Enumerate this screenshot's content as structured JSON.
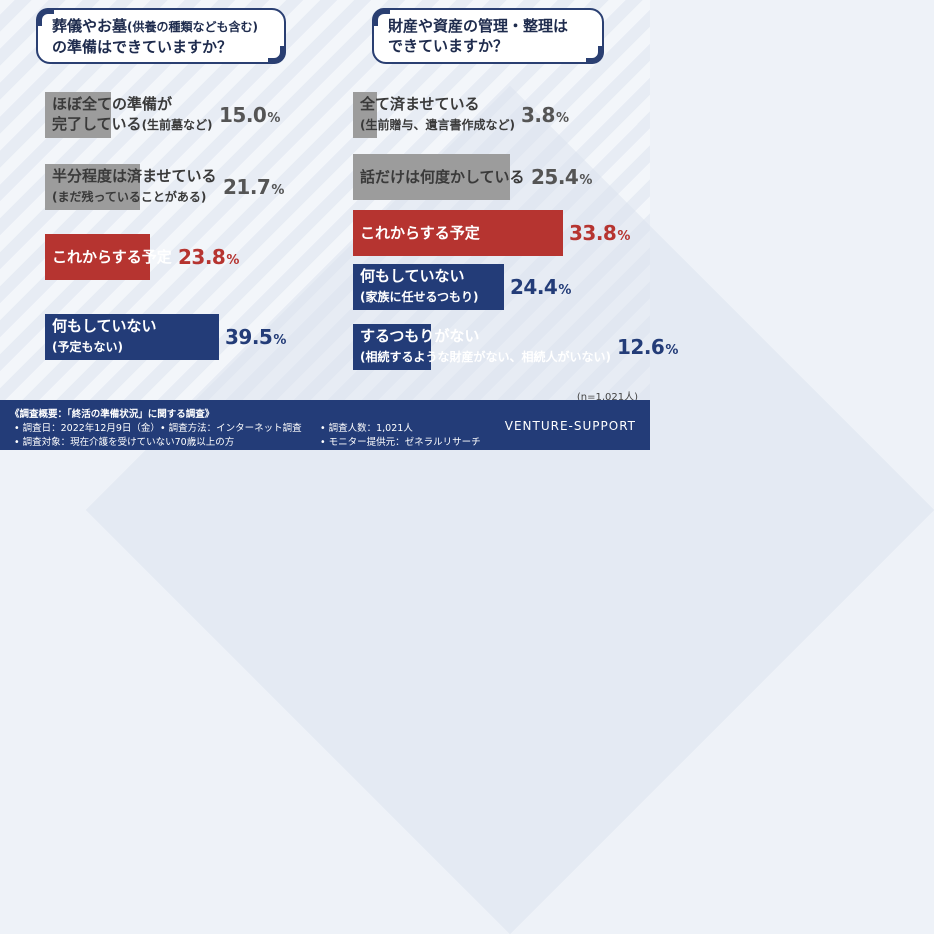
{
  "left": {
    "question_line1": "葬儀やお墓",
    "question_line1_small": "(供養の種類なども含む)",
    "question_line2": "の準備はできていますか？"
  },
  "right": {
    "question_line1": "財産や資産の管理・整理は",
    "question_line2": "できていますか？"
  },
  "sample_note": "(n=1,021人)",
  "colors": {
    "gray": "#9c9c9c",
    "red": "#b63430",
    "navy": "#233c78"
  },
  "chart_data": [
    {
      "type": "bar",
      "title": "葬儀やお墓(供養の種類なども含む)の準備はできていますか？",
      "orientation": "horizontal",
      "unit": "%",
      "categories": [
        {
          "main": "ほぼ全ての準備が",
          "sub_line": "完了している",
          "sub": "(生前墓など)",
          "value": 15.0,
          "color": "gray"
        },
        {
          "main": "半分程度は済ませている",
          "sub_line": "",
          "sub": "(まだ残っていることがある)",
          "value": 21.7,
          "color": "gray"
        },
        {
          "main": "これからする予定",
          "sub_line": "",
          "sub": "",
          "value": 23.8,
          "color": "red"
        },
        {
          "main": "何もしていない",
          "sub_line": "",
          "sub": "(予定もない)",
          "value": 39.5,
          "color": "navy"
        }
      ]
    },
    {
      "type": "bar",
      "title": "財産や資産の管理・整理はできていますか？",
      "orientation": "horizontal",
      "unit": "%",
      "categories": [
        {
          "main": "全て済ませている",
          "sub_line": "",
          "sub": "(生前贈与、遺言書作成など)",
          "value": 3.8,
          "color": "gray"
        },
        {
          "main": "話だけは何度かしている",
          "sub_line": "",
          "sub": "",
          "value": 25.4,
          "color": "gray"
        },
        {
          "main": "これからする予定",
          "sub_line": "",
          "sub": "",
          "value": 33.8,
          "color": "red"
        },
        {
          "main": "何もしていない",
          "sub_line": "",
          "sub": "(家族に任せるつもり)",
          "value": 24.4,
          "color": "navy"
        },
        {
          "main": "するつもりがない",
          "sub_line": "",
          "sub": "(相続するような財産がない、相続人がいない)",
          "value": 12.6,
          "color": "navy"
        }
      ]
    }
  ],
  "footer": {
    "title": "《調査概要：「終活の準備状況」に関する調査》",
    "date": "• 調査日：2022年12月9日（金）",
    "method": "• 調査方法：インターネット調査",
    "count": "• 調査人数：1,021人",
    "target": "• 調査対象：現在介護を受けていない70歳以上の方",
    "provider": "• モニター提供元：ゼネラルリサーチ",
    "brand": "VENTURE-SUPPORT"
  }
}
